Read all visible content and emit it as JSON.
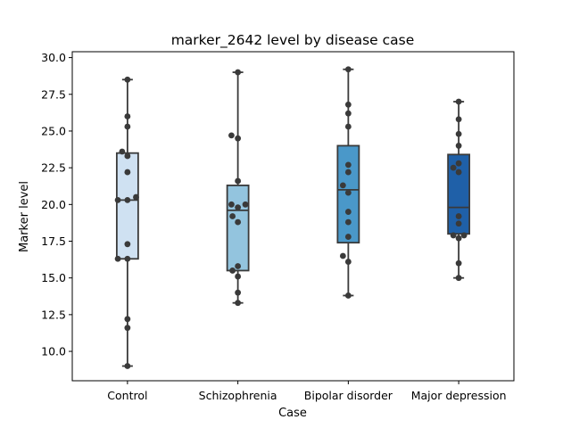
{
  "chart_data": {
    "type": "box",
    "title": "marker_2642 level by disease case",
    "xlabel": "Case",
    "ylabel": "Marker level",
    "ylim": [
      8.0,
      30.4
    ],
    "yticks": [
      "10.0",
      "12.5",
      "15.0",
      "17.5",
      "20.0",
      "22.5",
      "25.0",
      "27.5",
      "30.0"
    ],
    "categories": [
      "Control",
      "Schizophrenia",
      "Bipolar disorder",
      "Major depression"
    ],
    "colors": [
      "#cfe1f2",
      "#93c4de",
      "#4a98c9",
      "#1f60a8"
    ],
    "boxes": [
      {
        "min": 9.0,
        "q1": 16.3,
        "median": 20.3,
        "q3": 23.5,
        "max": 28.5
      },
      {
        "min": 13.3,
        "q1": 15.5,
        "median": 19.6,
        "q3": 21.3,
        "max": 29.0
      },
      {
        "min": 13.8,
        "q1": 17.4,
        "median": 21.0,
        "q3": 24.0,
        "max": 29.2
      },
      {
        "min": 15.0,
        "q1": 18.0,
        "median": 19.8,
        "q3": 23.4,
        "max": 27.0
      }
    ],
    "points": [
      [
        [
          0.0,
          9.0
        ],
        [
          0.0,
          11.6
        ],
        [
          0.0,
          12.2
        ],
        [
          0.0,
          16.3
        ],
        [
          -0.18,
          16.3
        ],
        [
          0.0,
          17.3
        ],
        [
          -0.18,
          20.3
        ],
        [
          0.0,
          20.3
        ],
        [
          0.16,
          20.5
        ],
        [
          0.0,
          22.2
        ],
        [
          0.0,
          23.3
        ],
        [
          -0.1,
          23.6
        ],
        [
          0.0,
          25.3
        ],
        [
          0.0,
          26.0
        ],
        [
          0.0,
          28.5
        ]
      ],
      [
        [
          0.0,
          13.3
        ],
        [
          0.0,
          14.0
        ],
        [
          0.0,
          15.1
        ],
        [
          -0.1,
          15.5
        ],
        [
          0.0,
          15.8
        ],
        [
          0.0,
          18.8
        ],
        [
          -0.1,
          19.2
        ],
        [
          0.0,
          19.8
        ],
        [
          -0.12,
          20.0
        ],
        [
          0.14,
          20.0
        ],
        [
          0.0,
          21.6
        ],
        [
          0.0,
          24.5
        ],
        [
          -0.12,
          24.7
        ],
        [
          0.0,
          29.0
        ]
      ],
      [
        [
          0.0,
          13.8
        ],
        [
          0.0,
          16.1
        ],
        [
          -0.1,
          16.5
        ],
        [
          0.0,
          17.8
        ],
        [
          0.0,
          18.8
        ],
        [
          0.0,
          19.5
        ],
        [
          0.0,
          20.8
        ],
        [
          -0.1,
          21.3
        ],
        [
          0.0,
          22.2
        ],
        [
          0.0,
          22.7
        ],
        [
          0.0,
          25.3
        ],
        [
          0.0,
          26.2
        ],
        [
          0.0,
          26.8
        ],
        [
          0.0,
          29.2
        ]
      ],
      [
        [
          0.0,
          15.0
        ],
        [
          0.0,
          16.0
        ],
        [
          0.0,
          17.7
        ],
        [
          -0.1,
          17.9
        ],
        [
          0.1,
          17.9
        ],
        [
          0.0,
          18.7
        ],
        [
          0.0,
          19.2
        ],
        [
          0.0,
          22.2
        ],
        [
          -0.1,
          22.5
        ],
        [
          0.0,
          22.8
        ],
        [
          0.0,
          24.0
        ],
        [
          0.0,
          24.8
        ],
        [
          0.0,
          25.8
        ],
        [
          0.0,
          27.0
        ]
      ]
    ]
  }
}
